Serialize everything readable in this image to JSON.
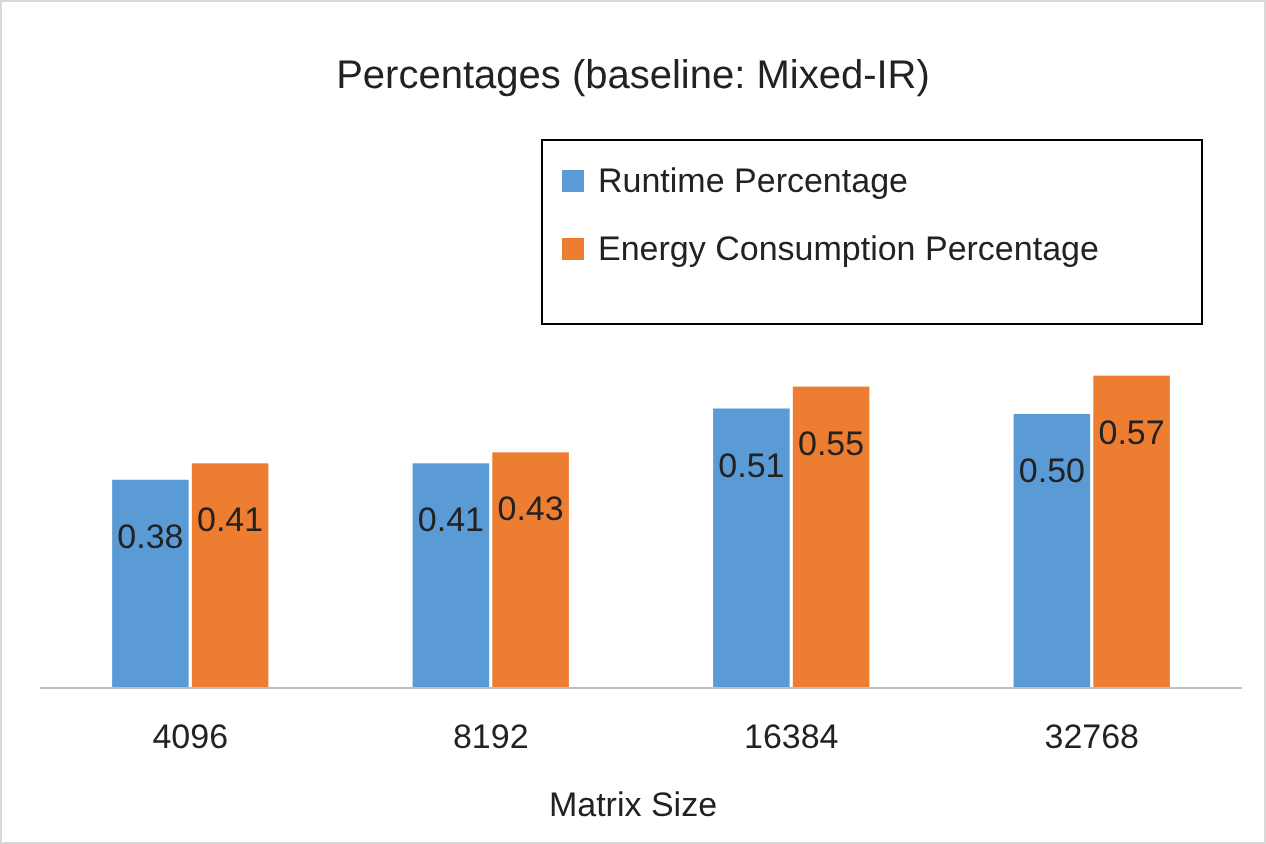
{
  "chart_data": {
    "type": "bar",
    "title": "Percentages (baseline: Mixed-IR)",
    "xlabel": "Matrix Size",
    "categories": [
      "4096",
      "8192",
      "16384",
      "32768"
    ],
    "series": [
      {
        "name": "Runtime Percentage",
        "color": "#5b9bd5",
        "values": [
          0.38,
          0.41,
          0.51,
          0.5
        ],
        "value_labels": [
          "0.38",
          "0.41",
          "0.51",
          "0.50"
        ]
      },
      {
        "name": "Energy Consumption Percentage",
        "color": "#ed7d31",
        "values": [
          0.41,
          0.43,
          0.55,
          0.57
        ],
        "value_labels": [
          "0.41",
          "0.43",
          "0.55",
          "0.57"
        ]
      }
    ],
    "ylim": [
      0,
      1
    ],
    "legend": "top right"
  }
}
